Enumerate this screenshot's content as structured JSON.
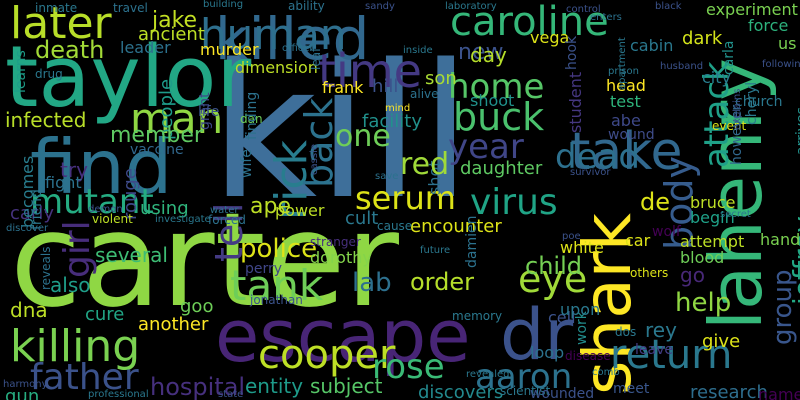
{
  "background_color": "#000000",
  "words": [
    {
      "id": "kill",
      "text": "kill",
      "color": "#3e6f9a"
    },
    {
      "id": "carter",
      "text": "carter",
      "color": "#8fd744"
    },
    {
      "id": "taylor",
      "text": "taylor",
      "color": "#22a785"
    },
    {
      "id": "find",
      "text": "find",
      "color": "#2c728e"
    },
    {
      "id": "killed",
      "text": "killed",
      "color": "#31688e"
    },
    {
      "id": "human",
      "text": "human",
      "color": "#2e6f8e"
    },
    {
      "id": "escape",
      "text": "escape",
      "color": "#482576"
    },
    {
      "id": "dr",
      "text": "dr",
      "color": "#3b528b"
    },
    {
      "id": "lahenry",
      "text": "lahenry",
      "color": "#35b779"
    },
    {
      "id": "shark",
      "text": "shark",
      "color": "#fde725"
    },
    {
      "id": "caroline",
      "text": "caroline",
      "color": "#35b779"
    },
    {
      "id": "later",
      "text": "later",
      "color": "#b8de29"
    },
    {
      "id": "time",
      "text": "time",
      "color": "#443983"
    },
    {
      "id": "take",
      "text": "take",
      "color": "#31688e"
    },
    {
      "id": "man",
      "text": "man",
      "color": "#90d743"
    },
    {
      "id": "killing",
      "text": "killing",
      "color": "#7ad151"
    },
    {
      "id": "tank",
      "text": "tank",
      "color": "#6ece58"
    },
    {
      "id": "return",
      "text": "return",
      "color": "#2a788e"
    },
    {
      "id": "cooper",
      "text": "cooper",
      "color": "#bddf26"
    },
    {
      "id": "father",
      "text": "father",
      "color": "#3b528b"
    },
    {
      "id": "rick",
      "text": "rick",
      "color": "#287d8e"
    },
    {
      "id": "back",
      "text": "back",
      "color": "#2c728e"
    },
    {
      "id": "home",
      "text": "home",
      "color": "#56c667"
    },
    {
      "id": "buck",
      "text": "buck",
      "color": "#4ac16d"
    },
    {
      "id": "year",
      "text": "year",
      "color": "#404688"
    },
    {
      "id": "dead",
      "text": "dead",
      "color": "#2d708e"
    },
    {
      "id": "one",
      "text": "one",
      "color": "#6ece58"
    },
    {
      "id": "serum",
      "text": "serum",
      "color": "#dde318"
    },
    {
      "id": "virus",
      "text": "virus",
      "color": "#20a486"
    },
    {
      "id": "body",
      "text": "body",
      "color": "#365c8d"
    },
    {
      "id": "attack",
      "text": "attack",
      "color": "#1fa088"
    },
    {
      "id": "jeffrey",
      "text": "jeffrey",
      "color": "#22a884"
    },
    {
      "id": "group",
      "text": "group",
      "color": "#39568c"
    },
    {
      "id": "eye",
      "text": "eye",
      "color": "#a0da39"
    },
    {
      "id": "rose",
      "text": "rose",
      "color": "#3aba76"
    },
    {
      "id": "aaron",
      "text": "aaron",
      "color": "#2c728e"
    },
    {
      "id": "police",
      "text": "police",
      "color": "#dde318"
    },
    {
      "id": "lab",
      "text": "lab",
      "color": "#2d708e"
    },
    {
      "id": "child",
      "text": "child",
      "color": "#75d054"
    },
    {
      "id": "order",
      "text": "order",
      "color": "#b5de2b"
    },
    {
      "id": "help",
      "text": "help",
      "color": "#90d743"
    },
    {
      "id": "tell",
      "text": "tell",
      "color": "#443a83"
    },
    {
      "id": "girl",
      "text": "girl",
      "color": "#472d7b"
    },
    {
      "id": "mutant",
      "text": "mutant",
      "color": "#25ac82"
    },
    {
      "id": "infected",
      "text": "infected",
      "color": "#b8de29"
    },
    {
      "id": "death",
      "text": "death",
      "color": "#a2da37"
    },
    {
      "id": "jake",
      "text": "jake",
      "color": "#c2df23"
    },
    {
      "id": "ancient",
      "text": "ancient",
      "color": "#bddf26"
    },
    {
      "id": "leader",
      "text": "leader",
      "color": "#2c728e"
    },
    {
      "id": "people",
      "text": "people",
      "color": "#1e9b8a"
    },
    {
      "id": "member",
      "text": "member",
      "color": "#5ec962"
    },
    {
      "id": "vaccine",
      "text": "vaccine",
      "color": "#31688e"
    },
    {
      "id": "try",
      "text": "try",
      "color": "#46307e"
    },
    {
      "id": "fight",
      "text": "fight",
      "color": "#2c728e"
    },
    {
      "id": "carly",
      "text": "carly",
      "color": "#46327e"
    },
    {
      "id": "becomes",
      "text": "becomes",
      "color": "#287d8e"
    },
    {
      "id": "learns",
      "text": "learns",
      "color": "#1e9d89"
    },
    {
      "id": "friend",
      "text": "friend",
      "color": "#2a788e"
    },
    {
      "id": "using",
      "text": "using",
      "color": "#2fb47c"
    },
    {
      "id": "several",
      "text": "several",
      "color": "#3dbc74"
    },
    {
      "id": "also",
      "text": "also",
      "color": "#1f9e89"
    },
    {
      "id": "dna",
      "text": "dna",
      "color": "#bddf26"
    },
    {
      "id": "gun",
      "text": "gun",
      "color": "#27ad81"
    },
    {
      "id": "cure",
      "text": "cure",
      "color": "#21a585"
    },
    {
      "id": "another",
      "text": "another",
      "color": "#fde725"
    },
    {
      "id": "rouge",
      "text": "rouge",
      "color": "#3e4a89"
    },
    {
      "id": "goo",
      "text": "goo",
      "color": "#6ece58"
    },
    {
      "id": "hospital",
      "text": "hospital",
      "color": "#46307e"
    },
    {
      "id": "entity",
      "text": "entity",
      "color": "#1e9b8a"
    },
    {
      "id": "subject",
      "text": "subject",
      "color": "#56c667"
    },
    {
      "id": "discovers",
      "text": "discovers",
      "color": "#23898e"
    },
    {
      "id": "research",
      "text": "research",
      "color": "#2e6e8e"
    },
    {
      "id": "named",
      "text": "named",
      "color": "#440154"
    },
    {
      "id": "meet",
      "text": "meet",
      "color": "#39568c"
    },
    {
      "id": "loop",
      "text": "loop",
      "color": "#2c728e"
    },
    {
      "id": "cell",
      "text": "cell",
      "color": "#3b528b"
    },
    {
      "id": "work",
      "text": "work",
      "color": "#228d8d"
    },
    {
      "id": "leave",
      "text": "leave",
      "color": "#433d84"
    },
    {
      "id": "give",
      "text": "give",
      "color": "#dde318"
    },
    {
      "id": "rey",
      "text": "rey",
      "color": "#2a788e"
    },
    {
      "id": "dos",
      "text": "dos",
      "color": "#2a788e"
    },
    {
      "id": "upon",
      "text": "upon",
      "color": "#2a788e"
    },
    {
      "id": "go",
      "text": "go",
      "color": "#482878"
    },
    {
      "id": "blood",
      "text": "blood",
      "color": "#6ece58"
    },
    {
      "id": "attempt",
      "text": "attempt",
      "color": "#bddf26"
    },
    {
      "id": "hand",
      "text": "hand",
      "color": "#7ad151"
    },
    {
      "id": "attacked",
      "text": "attacked",
      "color": "#3f4788"
    },
    {
      "id": "begin",
      "text": "begin",
      "color": "#1fa188"
    },
    {
      "id": "bruce",
      "text": "bruce",
      "color": "#bddf26"
    },
    {
      "id": "wolf",
      "text": "wolf",
      "color": "#440154"
    },
    {
      "id": "car",
      "text": "car",
      "color": "#dde318"
    },
    {
      "id": "white",
      "text": "white",
      "color": "#dde318"
    },
    {
      "id": "de",
      "text": "de",
      "color": "#dde318"
    },
    {
      "id": "daughter",
      "text": "daughter",
      "color": "#5ec962"
    },
    {
      "id": "shot",
      "text": "shot",
      "color": "#2c728e"
    },
    {
      "id": "red",
      "text": "red",
      "color": "#a0da39"
    },
    {
      "id": "experiment",
      "text": "experiment",
      "color": "#7ad151"
    },
    {
      "id": "force",
      "text": "force",
      "color": "#2db27d"
    },
    {
      "id": "us",
      "text": "us",
      "color": "#7ad151"
    },
    {
      "id": "dark",
      "text": "dark",
      "color": "#d2e21b"
    },
    {
      "id": "city",
      "text": "city",
      "color": "#287d8e"
    },
    {
      "id": "carla",
      "text": "carla",
      "color": "#21918c"
    },
    {
      "id": "church",
      "text": "church",
      "color": "#2a788e"
    },
    {
      "id": "cheryl",
      "text": "cheryl",
      "color": "#2a788e"
    },
    {
      "id": "arrives",
      "text": "arrives",
      "color": "#21918c"
    },
    {
      "id": "event",
      "text": "event",
      "color": "#dde318"
    },
    {
      "id": "however",
      "text": "however",
      "color": "#31688e"
    },
    {
      "id": "wound",
      "text": "wound",
      "color": "#3e4c8a"
    },
    {
      "id": "abe",
      "text": "abe",
      "color": "#3e4989"
    },
    {
      "id": "test",
      "text": "test",
      "color": "#2fb47c"
    },
    {
      "id": "head",
      "text": "head",
      "color": "#fde725"
    },
    {
      "id": "cabin",
      "text": "cabin",
      "color": "#2a788e"
    },
    {
      "id": "vega",
      "text": "vega",
      "color": "#dde318"
    },
    {
      "id": "hook",
      "text": "hook",
      "color": "#3b528b"
    },
    {
      "id": "student",
      "text": "student",
      "color": "#453781"
    },
    {
      "id": "new",
      "text": "new",
      "color": "#3b528b"
    },
    {
      "id": "day",
      "text": "day",
      "color": "#b5de2b"
    },
    {
      "id": "son",
      "text": "son",
      "color": "#a8db34"
    },
    {
      "id": "hill",
      "text": "hill",
      "color": "#3b528b"
    },
    {
      "id": "frank",
      "text": "frank",
      "color": "#fde725"
    },
    {
      "id": "facility",
      "text": "facility",
      "color": "#21918c"
    },
    {
      "id": "shoot",
      "text": "shoot",
      "color": "#20928c"
    },
    {
      "id": "murder",
      "text": "murder",
      "color": "#fde725"
    },
    {
      "id": "dimension",
      "text": "dimension",
      "color": "#bddf26"
    },
    {
      "id": "grant",
      "text": "grant",
      "color": "#3e4989"
    },
    {
      "id": "life",
      "text": "life",
      "color": "#3b528b"
    },
    {
      "id": "dan",
      "text": "dan",
      "color": "#6ece58"
    },
    {
      "id": "finding",
      "text": "finding",
      "color": "#2c728e"
    },
    {
      "id": "wife",
      "text": "wife",
      "color": "#2c728e"
    },
    {
      "id": "ape",
      "text": "ape",
      "color": "#bddf26"
    },
    {
      "id": "power",
      "text": "power",
      "color": "#bddf26"
    },
    {
      "id": "cult",
      "text": "cult",
      "color": "#2a788e"
    },
    {
      "id": "encounter",
      "text": "encounter",
      "color": "#dde318"
    },
    {
      "id": "dorothy",
      "text": "dorothy",
      "color": "#84d44b"
    },
    {
      "id": "perry",
      "text": "perry",
      "color": "#404688"
    },
    {
      "id": "damien",
      "text": "damien",
      "color": "#2c728e"
    },
    {
      "id": "stranger",
      "text": "stranger",
      "color": "#472f7d"
    },
    {
      "id": "jonathan",
      "text": "jonathan",
      "color": "#3b528b"
    },
    {
      "id": "memory",
      "text": "memory",
      "color": "#2a788e"
    },
    {
      "id": "others",
      "text": "others",
      "color": "#dde318"
    },
    {
      "id": "violent",
      "text": "violent",
      "color": "#bddf26"
    },
    {
      "id": "disease",
      "text": "disease",
      "color": "#440154"
    },
    {
      "id": "scientist",
      "text": "scientist",
      "color": "#2a788e"
    },
    {
      "id": "wounded",
      "text": "wounded",
      "color": "#3b528b"
    },
    {
      "id": "professional",
      "text": "professional",
      "color": "#2a788e"
    },
    {
      "id": "discover",
      "text": "discover",
      "color": "#2c728e"
    },
    {
      "id": "state",
      "text": "state",
      "color": "#3b528b"
    },
    {
      "id": "inmate",
      "text": "inmate",
      "color": "#2a788e"
    },
    {
      "id": "travel",
      "text": "travel",
      "color": "#2c728e"
    },
    {
      "id": "building",
      "text": "building",
      "color": "#2a788e"
    },
    {
      "id": "ability",
      "text": "ability",
      "color": "#2c728e"
    },
    {
      "id": "sandy",
      "text": "sandy",
      "color": "#3b528b"
    },
    {
      "id": "laboratory",
      "text": "laboratory",
      "color": "#2a788e"
    },
    {
      "id": "black",
      "text": "black",
      "color": "#3b528b"
    },
    {
      "id": "enters",
      "text": "enters",
      "color": "#2c728e"
    },
    {
      "id": "drug",
      "text": "drug",
      "color": "#2a788e"
    },
    {
      "id": "officer",
      "text": "officer",
      "color": "#2c728e"
    },
    {
      "id": "husband",
      "text": "husband",
      "color": "#3b528b"
    },
    {
      "id": "prison",
      "text": "prison",
      "color": "#2a788e"
    },
    {
      "id": "water",
      "text": "water",
      "color": "#2c728e"
    },
    {
      "id": "secret",
      "text": "secret",
      "color": "#2a788e"
    },
    {
      "id": "demon",
      "text": "demon",
      "color": "#3b528b"
    },
    {
      "id": "investigate",
      "text": "investigate",
      "color": "#2a788e"
    },
    {
      "id": "harmony",
      "text": "harmony",
      "color": "#3b528b"
    },
    {
      "id": "revealed",
      "text": "revealed",
      "color": "#2a788e"
    },
    {
      "id": "reveals",
      "text": "reveals",
      "color": "#2c728e"
    },
    {
      "id": "poe",
      "text": "poe",
      "color": "#3b528b"
    },
    {
      "id": "mind",
      "text": "mind",
      "color": "#fde725"
    },
    {
      "id": "alive",
      "text": "alive",
      "color": "#2c728e"
    },
    {
      "id": "cassie",
      "text": "cassie",
      "color": "#3b528b"
    },
    {
      "id": "save",
      "text": "save",
      "color": "#2c728e"
    },
    {
      "id": "survivor",
      "text": "survivor",
      "color": "#3b528b"
    },
    {
      "id": "cause",
      "text": "cause",
      "color": "#2a788e"
    },
    {
      "id": "forced",
      "text": "forced",
      "color": "#2c728e"
    },
    {
      "id": "future",
      "text": "future",
      "color": "#2a788e"
    },
    {
      "id": "following",
      "text": "following",
      "color": "#3b528b"
    },
    {
      "id": "apartment",
      "text": "apartment",
      "color": "#2a788e"
    },
    {
      "id": "leaf",
      "text": "leaf",
      "color": "#2c728e"
    },
    {
      "id": "control",
      "text": "control",
      "color": "#3b528b"
    },
    {
      "id": "inside",
      "text": "inside",
      "color": "#2a788e"
    },
    {
      "id": "explains",
      "text": "explains",
      "color": "#3b528b"
    },
    {
      "id": "comb",
      "text": "comb",
      "color": "#2a788e"
    }
  ]
}
